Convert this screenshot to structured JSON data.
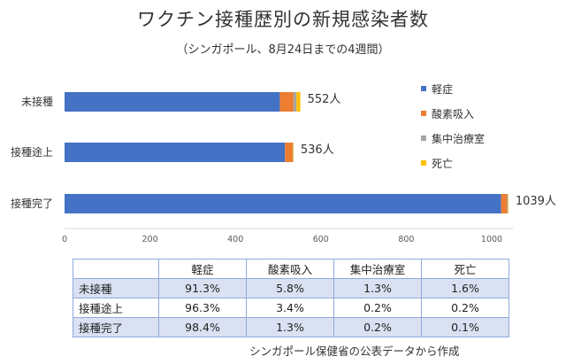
{
  "chart_data": {
    "type": "bar",
    "orientation": "horizontal",
    "stacked": true,
    "title": "ワクチン接種歴別の新規感染者数",
    "subtitle": "（シンガポール、8月24日までの4週間）",
    "categories": [
      "未接種",
      "接種途上",
      "接種完了"
    ],
    "series": [
      {
        "name": "軽症",
        "color": "#4472c4",
        "values": [
          504,
          516,
          1022
        ]
      },
      {
        "name": "酸素吸入",
        "color": "#ed7d31",
        "values": [
          32,
          18,
          14
        ]
      },
      {
        "name": "集中治療室",
        "color": "#a5a5a5",
        "values": [
          7,
          1,
          2
        ]
      },
      {
        "name": "死亡",
        "color": "#ffc000",
        "values": [
          9,
          1,
          1
        ]
      }
    ],
    "totals": [
      "552人",
      "536人",
      "1039人"
    ],
    "xlim": [
      0,
      1050
    ],
    "xticks": [
      "0",
      "200",
      "400",
      "600",
      "800",
      "1000"
    ],
    "tick_values": [
      0,
      200,
      400,
      600,
      800,
      1000
    ],
    "legend_position": "right"
  },
  "table": {
    "headers": [
      "",
      "軽症",
      "酸素吸入",
      "集中治療室",
      "死亡"
    ],
    "rows": [
      {
        "label": "未接種",
        "cells": [
          "91.3%",
          "5.8%",
          "1.3%",
          "1.6%"
        ]
      },
      {
        "label": "接種途上",
        "cells": [
          "96.3%",
          "3.4%",
          "0.2%",
          "0.2%"
        ]
      },
      {
        "label": "接種完了",
        "cells": [
          "98.4%",
          "1.3%",
          "0.2%",
          "0.1%"
        ]
      }
    ]
  },
  "source": "シンガポール保健省の公表データから作成"
}
